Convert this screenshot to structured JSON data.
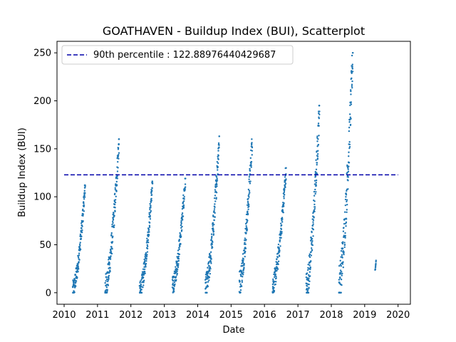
{
  "chart_data": {
    "type": "scatter",
    "title": "GOATHAVEN - Buildup Index (BUI), Scatterplot",
    "xlabel": "Date",
    "ylabel": "Buildup Index (BUI)",
    "xlim": [
      "2009-10-15",
      "2020-05-15"
    ],
    "ylim": [
      -12,
      262
    ],
    "x_ticks": [
      "2010",
      "2011",
      "2012",
      "2013",
      "2014",
      "2015",
      "2016",
      "2017",
      "2018",
      "2019",
      "2020"
    ],
    "y_ticks": [
      0,
      50,
      100,
      150,
      200,
      250
    ],
    "grid": false,
    "legend_position": "top-left",
    "point_color": "#1f77b4",
    "reference_line": {
      "label": "90th percentile : 122.88976440429687",
      "value": 122.88976440429687,
      "color": "#0000aa",
      "style": "dashed",
      "x_start": "2010-01-01",
      "x_end": "2020-01-01"
    },
    "series": [
      {
        "season_points": [
          {
            "year": 2010,
            "start": "2010-04-05",
            "end": "2010-08-20",
            "y_start": 3,
            "y_end": 112
          },
          {
            "year": 2011,
            "start": "2011-03-25",
            "end": "2011-08-25",
            "y_start": 5,
            "y_end": 160
          },
          {
            "year": 2012,
            "start": "2012-04-05",
            "end": "2012-08-25",
            "y_start": 1,
            "y_end": 116
          },
          {
            "year": 2013,
            "start": "2013-03-30",
            "end": "2013-08-20",
            "y_start": 7,
            "y_end": 119
          },
          {
            "year": 2014,
            "start": "2014-03-25",
            "end": "2014-08-25",
            "y_start": 4,
            "y_end": 163
          },
          {
            "year": 2015,
            "start": "2015-04-01",
            "end": "2015-08-20",
            "y_start": 10,
            "y_end": 160
          },
          {
            "year": 2016,
            "start": "2016-03-30",
            "end": "2016-08-25",
            "y_start": 8,
            "y_end": 130
          },
          {
            "year": 2017,
            "start": "2017-04-01",
            "end": "2017-08-25",
            "y_start": 5,
            "y_end": 195
          },
          {
            "year": 2018,
            "start": "2018-03-25",
            "end": "2018-08-25",
            "y_start": 9,
            "y_end": 250
          },
          {
            "year": 2019,
            "start": "2019-04-25",
            "end": "2019-05-05",
            "y_start": 24,
            "y_end": 34
          }
        ]
      }
    ]
  }
}
